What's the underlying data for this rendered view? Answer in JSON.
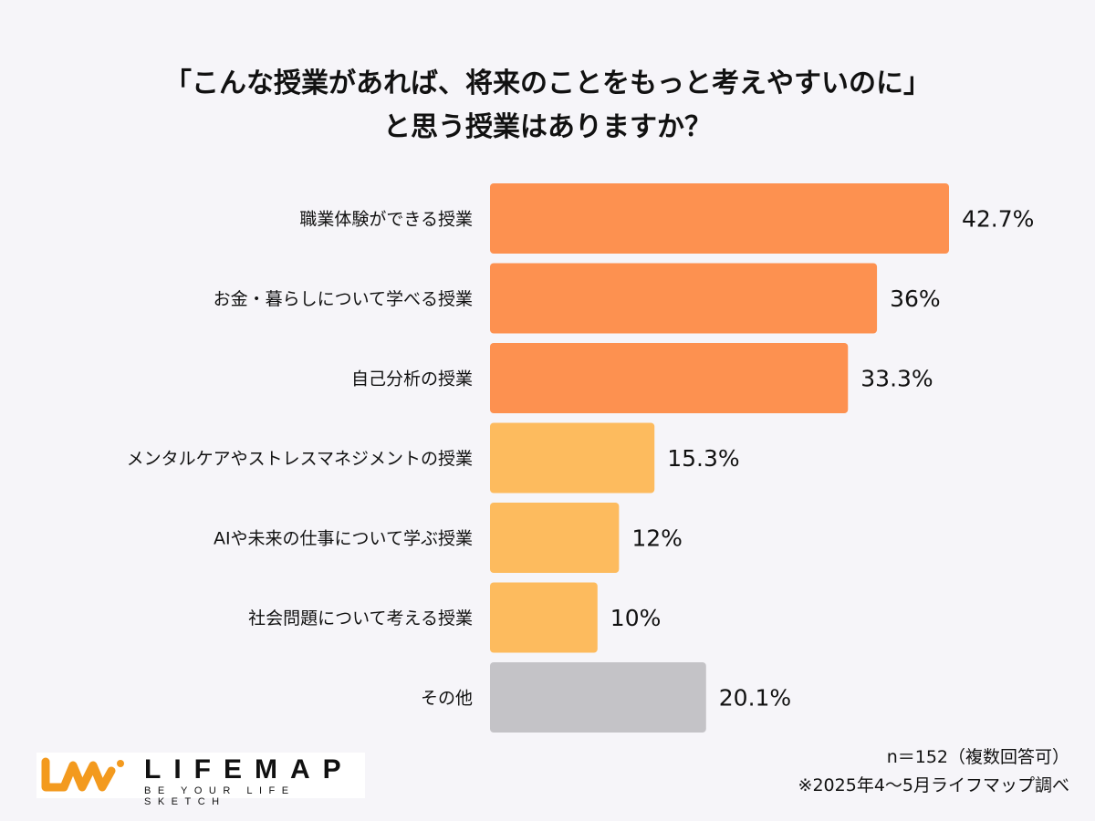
{
  "title": {
    "line1": "「こんな授業があれば、将来のことをもっと考えやすいのに」",
    "line2": "と思う授業はありますか？"
  },
  "chart_data": {
    "type": "bar",
    "orientation": "horizontal",
    "categories": [
      "職業体験ができる授業",
      "お金・暮らしについて学べる授業",
      "自己分析の授業",
      "メンタルケアやストレスマネジメントの授業",
      "AIや未来の仕事について学ぶ授業",
      "社会問題について考える授業",
      "その他"
    ],
    "values": [
      42.7,
      36,
      33.3,
      15.3,
      12,
      10,
      20.1
    ],
    "data_labels": [
      "42.7%",
      "36%",
      "33.3%",
      "15.3%",
      "12%",
      "10%",
      "20.1%"
    ],
    "bar_colors": [
      "#fd9150",
      "#fd9150",
      "#fd9150",
      "#fdbb5e",
      "#fdbb5e",
      "#fdbb5e",
      "#c4c3c7"
    ],
    "unit": "%",
    "grid": false
  },
  "footer": {
    "n": "n＝152（複数回答可）",
    "source": "※2025年4〜5月ライフマップ調べ"
  },
  "logo": {
    "name": "LIFEMAP",
    "tagline": "BE YOUR LIFE SKETCH",
    "color": "#f39a1e"
  }
}
